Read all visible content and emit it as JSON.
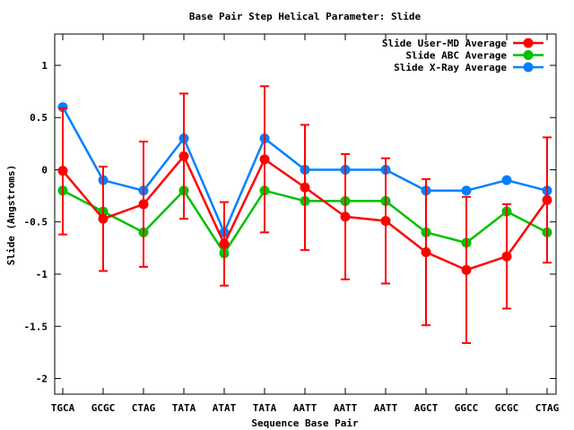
{
  "chart_data": {
    "type": "line",
    "title": "Base Pair Step Helical Parameter: Slide",
    "xlabel": "Sequence Base Pair",
    "ylabel": "Slide (Angstroms)",
    "ylim": [
      -2.15,
      1.3
    ],
    "yticks": [
      -2,
      -1.5,
      -1,
      -0.5,
      0,
      0.5,
      1
    ],
    "ytick_labels": [
      "-2",
      "-1.5",
      "-1",
      "-0.5",
      "0",
      "0.5",
      "1"
    ],
    "grid": false,
    "legend_position": "top-right",
    "categories": [
      "TGCA",
      "GCGC",
      "CTAG",
      "TATA",
      "ATAT",
      "TATA",
      "AATT",
      "AATT",
      "AATT",
      "AGCT",
      "GGCC",
      "GCGC",
      "CTAG"
    ],
    "series": [
      {
        "name": "Slide User-MD Average",
        "color": "#ff0000",
        "values": [
          -0.01,
          -0.47,
          -0.33,
          0.13,
          -0.71,
          0.1,
          -0.17,
          -0.45,
          -0.49,
          -0.79,
          -0.96,
          -0.83,
          -0.29
        ],
        "error_low": [
          -0.62,
          -0.97,
          -0.93,
          -0.47,
          -1.11,
          -0.6,
          -0.77,
          -1.05,
          -1.09,
          -1.49,
          -1.66,
          -1.33,
          -0.89
        ],
        "error_high": [
          0.59,
          0.03,
          0.27,
          0.73,
          -0.31,
          0.8,
          0.43,
          0.15,
          0.11,
          -0.09,
          -0.26,
          -0.33,
          0.31
        ]
      },
      {
        "name": "Slide ABC Average",
        "color": "#00c000",
        "values": [
          -0.2,
          -0.4,
          -0.6,
          -0.2,
          -0.8,
          -0.2,
          -0.3,
          -0.3,
          -0.3,
          -0.6,
          -0.7,
          -0.4,
          -0.6
        ]
      },
      {
        "name": "Slide X-Ray Average",
        "color": "#0080ff",
        "values": [
          0.6,
          -0.1,
          -0.2,
          0.3,
          -0.6,
          0.3,
          0.0,
          0.0,
          0.0,
          -0.2,
          -0.2,
          -0.1,
          -0.2
        ]
      }
    ]
  }
}
